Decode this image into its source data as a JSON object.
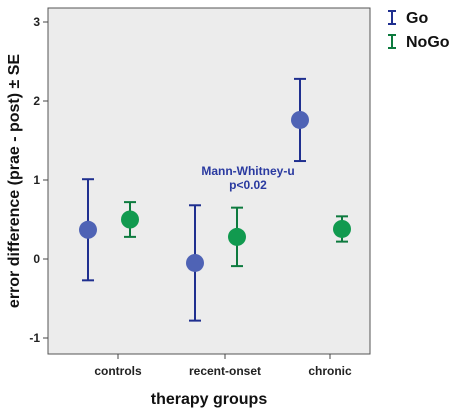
{
  "chart_data": {
    "type": "scatter",
    "xlabel": "therapy groups",
    "ylabel": "error difference (prae - post) ± SE",
    "categories": [
      "controls",
      "recent-onset",
      "chronic"
    ],
    "ylim": [
      -1.2,
      3.2
    ],
    "yticks": [
      "-1",
      "0",
      "1",
      "2",
      "3"
    ],
    "grid": false,
    "legend_position": "top-right, outside plot",
    "series": [
      {
        "name": "Go",
        "color": "#1f2f8f",
        "marker_color": "#4f63b5",
        "values": [
          0.37,
          -0.05,
          1.76
        ],
        "err_low": [
          -0.27,
          -0.78,
          1.24
        ],
        "err_high": [
          1.01,
          0.68,
          2.28
        ]
      },
      {
        "name": "NoGo",
        "color": "#0d7a3e",
        "marker_color": "#119a4f",
        "values": [
          0.5,
          0.28,
          0.38
        ],
        "err_low": [
          0.28,
          -0.09,
          0.22
        ],
        "err_high": [
          0.72,
          0.65,
          0.54
        ]
      }
    ],
    "annotations": [
      {
        "text_line1": "Mann-Whitney-u",
        "text_line2": "p<0.02",
        "color": "#2a3aa0"
      }
    ],
    "plot_background": "#ececec"
  }
}
